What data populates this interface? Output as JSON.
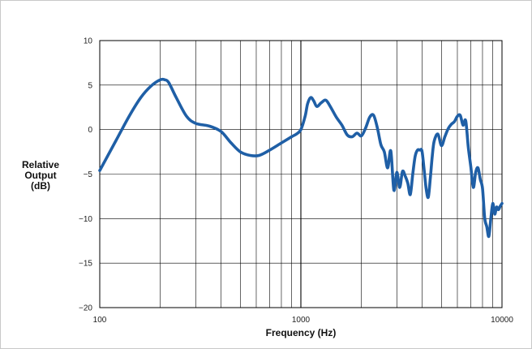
{
  "chart_data": {
    "type": "line",
    "title": "",
    "xlabel": "Frequency (Hz)",
    "ylabel": [
      "Relative",
      "Output",
      "(dB)"
    ],
    "x_scale": "log",
    "xlim": [
      100,
      10000
    ],
    "ylim": [
      -20,
      10
    ],
    "x_tick_labels": [
      "100",
      "1000",
      "10000"
    ],
    "y_ticks": [
      10,
      5,
      0,
      -5,
      -10,
      -15,
      -20
    ],
    "y_tick_labels": [
      "10",
      "5",
      "0",
      "−5",
      "−10",
      "−15",
      "−20"
    ],
    "grid": true,
    "colors": {
      "line": "#1f5fa6",
      "grid": "#000000",
      "border": "#c8c8c8"
    },
    "series": [
      {
        "x": [
          100,
          120,
          140,
          160,
          180,
          200,
          210,
          220,
          240,
          270,
          300,
          350,
          400,
          450,
          500,
          560,
          620,
          700,
          800,
          900,
          950,
          1000,
          1050,
          1080,
          1120,
          1160,
          1200,
          1260,
          1330,
          1400,
          1500,
          1600,
          1700,
          1800,
          1900,
          2000,
          2100,
          2200,
          2300,
          2400,
          2500,
          2600,
          2700,
          2800,
          2900,
          3000,
          3100,
          3200,
          3300,
          3400,
          3500,
          3600,
          3700,
          3800,
          3900,
          4000,
          4100,
          4200,
          4300,
          4400,
          4500,
          4600,
          4800,
          5000,
          5200,
          5400,
          5600,
          5800,
          6000,
          6200,
          6400,
          6600,
          6800,
          7000,
          7200,
          7400,
          7600,
          7800,
          8000,
          8200,
          8400,
          8600,
          8800,
          9000,
          9200,
          9400,
          9600,
          9800,
          10000
        ],
        "y": [
          -4.6,
          -1.3,
          1.5,
          3.6,
          4.9,
          5.6,
          5.6,
          5.3,
          3.6,
          1.5,
          0.7,
          0.4,
          -0.2,
          -1.5,
          -2.5,
          -2.9,
          -2.9,
          -2.3,
          -1.5,
          -0.8,
          -0.5,
          0.0,
          1.5,
          2.9,
          3.6,
          3.2,
          2.6,
          3.0,
          3.3,
          2.6,
          1.4,
          0.5,
          -0.6,
          -0.8,
          -0.4,
          -0.7,
          0.2,
          1.4,
          1.6,
          0.2,
          -1.7,
          -2.5,
          -4.3,
          -2.4,
          -6.8,
          -4.8,
          -6.5,
          -4.7,
          -5.2,
          -6.0,
          -7.3,
          -5.0,
          -3.0,
          -2.3,
          -2.3,
          -2.4,
          -4.5,
          -6.7,
          -7.6,
          -5.5,
          -3.0,
          -1.3,
          -0.5,
          -1.8,
          -0.8,
          0.1,
          0.6,
          0.9,
          1.5,
          1.6,
          0.5,
          1.0,
          -2.0,
          -4.2,
          -6.5,
          -4.8,
          -4.3,
          -5.6,
          -6.6,
          -9.9,
          -10.9,
          -12.0,
          -10.0,
          -8.3,
          -9.5,
          -8.7,
          -9.0,
          -8.6,
          -8.3
        ]
      }
    ]
  }
}
